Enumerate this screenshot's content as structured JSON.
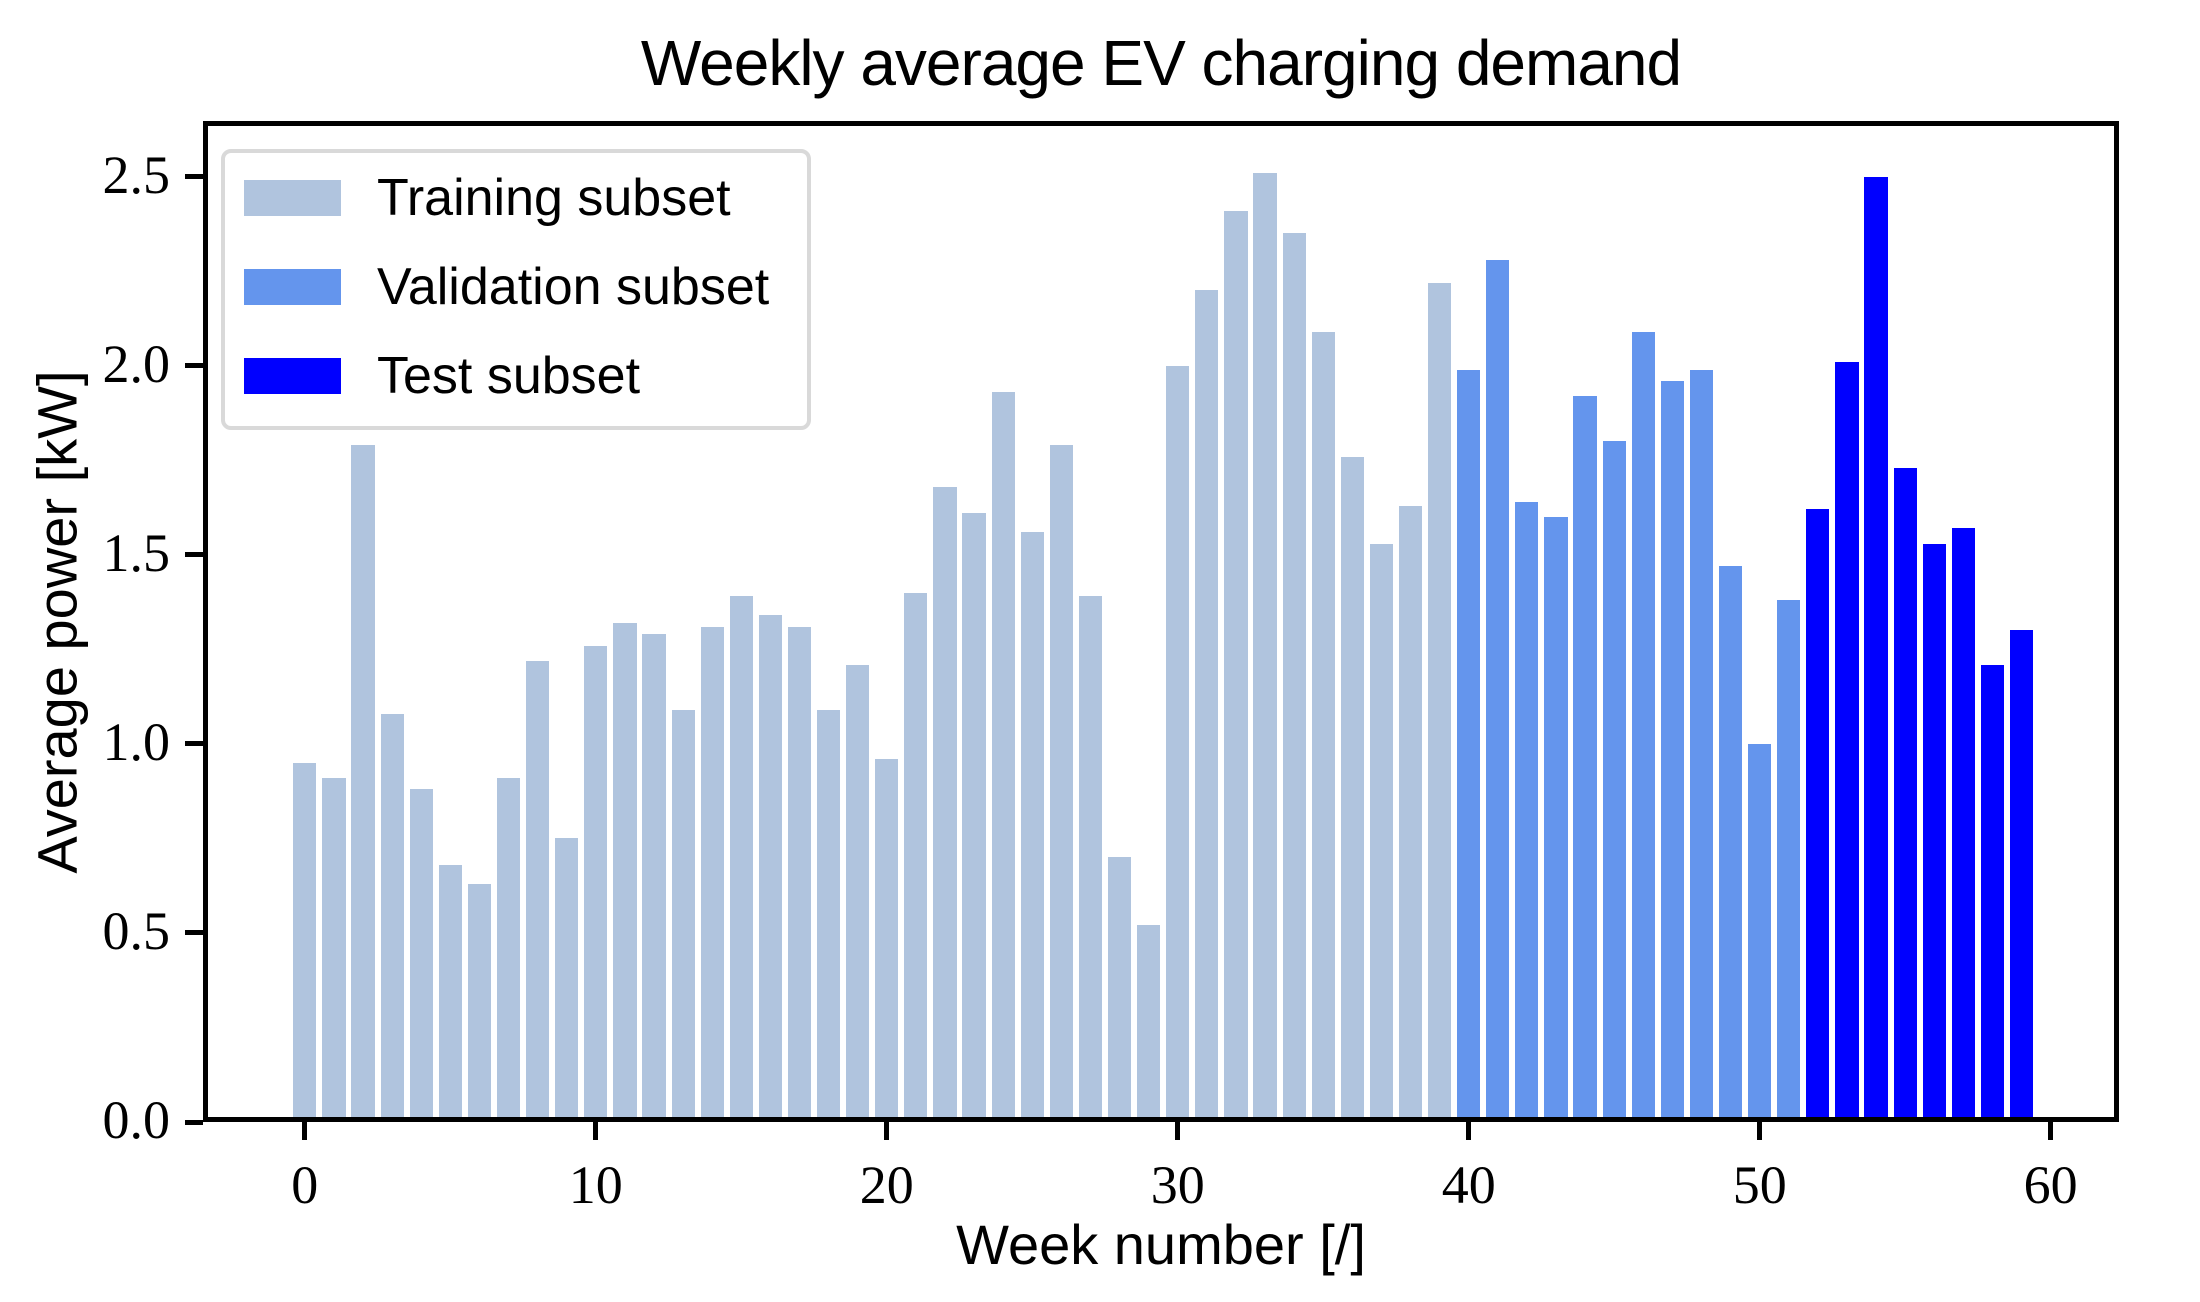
{
  "figure_title": "Weekly average EV charging demand",
  "chart_data": {
    "type": "bar",
    "title": "Weekly average EV charging demand",
    "xlabel": "Week number [/]",
    "ylabel": "Average power [kW]",
    "xlim": [
      -3.5,
      62.35
    ],
    "ylim": [
      0,
      2.642
    ],
    "xticks": [
      0,
      10,
      20,
      30,
      40,
      50,
      60
    ],
    "yticks": [
      0.0,
      0.5,
      1.0,
      1.5,
      2.0,
      2.5
    ],
    "bar_width_weeks": 0.8,
    "grid": false,
    "legend_position": "upper-left",
    "x_unit": "week",
    "series": [
      {
        "name": "Training subset",
        "color": "#b0c4de",
        "start_week": 0,
        "values": [
          0.95,
          0.91,
          1.79,
          1.08,
          0.88,
          0.68,
          0.63,
          0.91,
          1.22,
          0.75,
          1.26,
          1.32,
          1.29,
          1.09,
          1.31,
          1.39,
          1.34,
          1.31,
          1.09,
          1.21,
          0.96,
          1.4,
          1.68,
          1.61,
          1.93,
          1.56,
          1.79,
          1.39,
          0.7,
          0.52,
          2.0,
          2.2,
          2.41,
          2.51,
          2.35,
          2.09,
          1.76,
          1.53,
          1.63,
          2.22
        ]
      },
      {
        "name": "Validation subset",
        "color": "#6495ed",
        "start_week": 40,
        "values": [
          1.99,
          2.28,
          1.64,
          1.6,
          1.92,
          1.8,
          2.09,
          1.96,
          1.99,
          1.47,
          1.0,
          1.38
        ]
      },
      {
        "name": "Test subset",
        "color": "#0000ff",
        "start_week": 52,
        "values": [
          1.62,
          2.01,
          2.5,
          1.73,
          1.53,
          1.57,
          1.21,
          1.3
        ]
      }
    ]
  }
}
